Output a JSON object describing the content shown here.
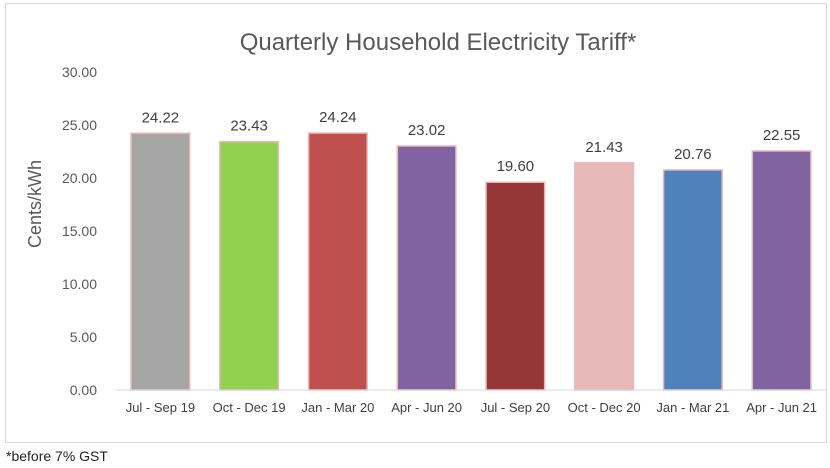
{
  "chart_data": {
    "type": "bar",
    "title": "Quarterly Household Electricity Tariff*",
    "xlabel": "",
    "ylabel": "Cents/kWh",
    "ylim": [
      0,
      30
    ],
    "yticks": [
      "0.00",
      "5.00",
      "10.00",
      "15.00",
      "20.00",
      "25.00",
      "30.00"
    ],
    "grid": false,
    "legend": "none",
    "categories": [
      "Jul - Sep 19",
      "Oct - Dec 19",
      "Jan - Mar 20",
      "Apr - Jun 20",
      "Jul - Sep 20",
      "Oct - Dec 20",
      "Jan - Mar 21",
      "Apr - Jun 21"
    ],
    "values": [
      24.22,
      23.43,
      24.24,
      23.02,
      19.6,
      21.43,
      20.76,
      22.55
    ],
    "data_labels": [
      "24.22",
      "23.43",
      "24.24",
      "23.02",
      "19.60",
      "21.43",
      "20.76",
      "22.55"
    ],
    "bar_colors": [
      "#a5a5a5",
      "#92d050",
      "#c0504d",
      "#8064a2",
      "#953735",
      "#e6b9b8",
      "#4f81bd",
      "#8064a2"
    ],
    "bar_border_color": "#e6b9b8"
  },
  "footnote": "*before 7% GST"
}
